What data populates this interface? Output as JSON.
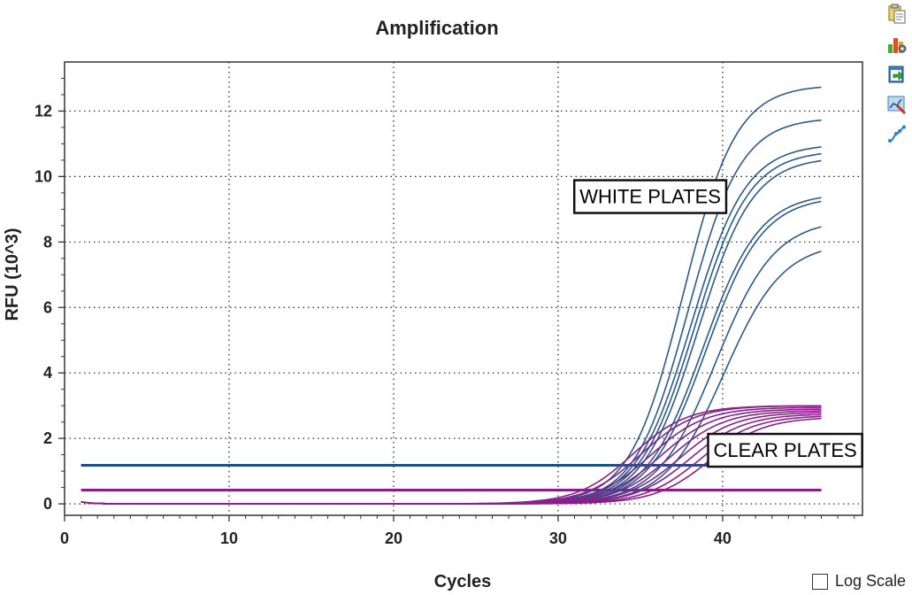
{
  "chart_data": {
    "type": "line",
    "title": "Amplification",
    "xlabel": "Cycles",
    "ylabel": "RFU (10^3)",
    "xlim": [
      0,
      48.5
    ],
    "ylim": [
      -0.35,
      13.5
    ],
    "xticks": [
      0,
      10,
      20,
      30,
      40
    ],
    "yticks": [
      0,
      2,
      4,
      6,
      8,
      10,
      12
    ],
    "grid": true,
    "series_groups": [
      {
        "group": "white",
        "color": "#2b5a8c",
        "curves": [
          {
            "max": 12.8,
            "mid": 37.6,
            "k": 0.62
          },
          {
            "max": 11.8,
            "mid": 37.9,
            "k": 0.62
          },
          {
            "max": 11.0,
            "mid": 38.1,
            "k": 0.6
          },
          {
            "max": 10.8,
            "mid": 38.3,
            "k": 0.6
          },
          {
            "max": 10.6,
            "mid": 38.5,
            "k": 0.6
          },
          {
            "max": 9.5,
            "mid": 38.8,
            "k": 0.58
          },
          {
            "max": 9.4,
            "mid": 39.0,
            "k": 0.58
          },
          {
            "max": 8.7,
            "mid": 39.6,
            "k": 0.56
          },
          {
            "max": 8.0,
            "mid": 40.1,
            "k": 0.56
          }
        ]
      },
      {
        "group": "clear",
        "color": "#8a1f8a",
        "curves": [
          {
            "max": 3.0,
            "mid": 34.5,
            "k": 0.6
          },
          {
            "max": 3.0,
            "mid": 35.0,
            "k": 0.6
          },
          {
            "max": 2.95,
            "mid": 35.6,
            "k": 0.6
          },
          {
            "max": 2.9,
            "mid": 36.2,
            "k": 0.6
          },
          {
            "max": 2.85,
            "mid": 36.8,
            "k": 0.6
          },
          {
            "max": 2.8,
            "mid": 37.4,
            "k": 0.6
          },
          {
            "max": 2.75,
            "mid": 38.0,
            "k": 0.6
          },
          {
            "max": 2.7,
            "mid": 38.6,
            "k": 0.6
          },
          {
            "max": 2.65,
            "mid": 39.2,
            "k": 0.6
          }
        ]
      }
    ],
    "cycle_range": [
      1,
      46
    ],
    "thresholds": [
      {
        "value": 1.18,
        "color": "#1e4f86"
      },
      {
        "value": 0.42,
        "color": "#8a1f8a"
      }
    ],
    "annotations": [
      {
        "text": "WHITE PLATES",
        "x": 35.6,
        "y": 9.4
      },
      {
        "text": "CLEAR PLATES",
        "x": 43.8,
        "y": 1.65
      }
    ]
  },
  "toolbar": {
    "icons": [
      "copy-icon",
      "chart-settings-icon",
      "export-icon",
      "zoom-icon",
      "curve-fit-icon"
    ]
  },
  "log_scale": {
    "label": "Log Scale",
    "checked": false
  }
}
